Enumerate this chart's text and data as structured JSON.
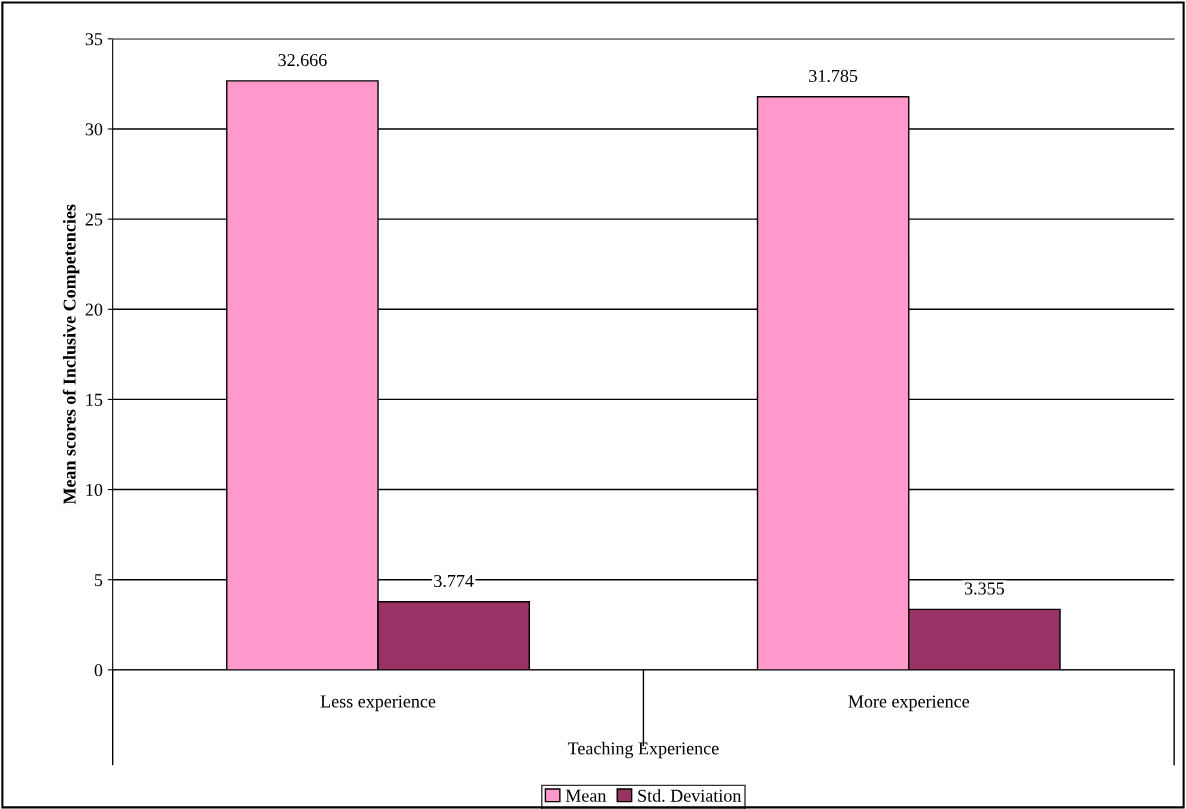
{
  "chart_data": {
    "type": "bar",
    "xlabel": "Teaching Experience",
    "ylabel": "Mean scores of Inclusive Competencies",
    "categories": [
      "Less experience",
      "More experience"
    ],
    "series": [
      {
        "name": "Mean",
        "color": "#ff99cc",
        "values": [
          32.666,
          31.785
        ]
      },
      {
        "name": "Std. Deviation",
        "color": "#993366",
        "values": [
          3.774,
          3.355
        ]
      }
    ],
    "ylim": [
      0,
      35
    ],
    "yticks": [
      0,
      5,
      10,
      15,
      20,
      25,
      30,
      35
    ],
    "grid": "y",
    "legend": "bottom",
    "data_labels": true
  }
}
